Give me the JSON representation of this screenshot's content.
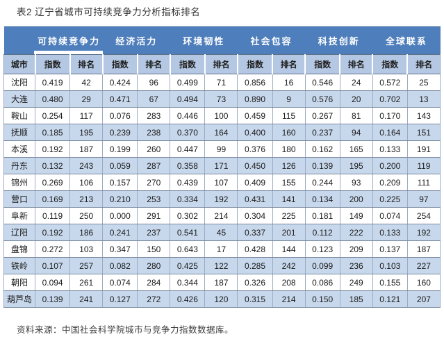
{
  "title": "表2 辽宁省城市可持续竞争力分析指标排名",
  "footer": "资料来源：中国社会科学院城市与竞争力指数数据库。",
  "colors": {
    "header_bg": "#4e7ebb",
    "header_text": "#ffffff",
    "subheader_bg": "#b5c8e3",
    "row_alt_bg": "#c8d8ec",
    "border": "#8e9fb8"
  },
  "table": {
    "city_header": "城市",
    "groups": [
      "可持续竞争力",
      "经济活力",
      "环境韧性",
      "社会包容",
      "科技创新",
      "全球联系"
    ],
    "sub_headers": {
      "index": "指数",
      "rank": "排名"
    },
    "rows": [
      {
        "city": "沈阳",
        "values": [
          "0.419",
          "42",
          "0.424",
          "96",
          "0.499",
          "71",
          "0.856",
          "16",
          "0.546",
          "24",
          "0.572",
          "25"
        ]
      },
      {
        "city": "大连",
        "values": [
          "0.480",
          "29",
          "0.471",
          "67",
          "0.494",
          "73",
          "0.890",
          "9",
          "0.576",
          "20",
          "0.702",
          "13"
        ]
      },
      {
        "city": "鞍山",
        "values": [
          "0.254",
          "117",
          "0.076",
          "283",
          "0.446",
          "100",
          "0.459",
          "115",
          "0.267",
          "81",
          "0.170",
          "143"
        ]
      },
      {
        "city": "抚顺",
        "values": [
          "0.185",
          "195",
          "0.239",
          "238",
          "0.370",
          "164",
          "0.400",
          "160",
          "0.237",
          "94",
          "0.164",
          "151"
        ]
      },
      {
        "city": "本溪",
        "values": [
          "0.192",
          "187",
          "0.199",
          "260",
          "0.447",
          "99",
          "0.376",
          "180",
          "0.162",
          "165",
          "0.133",
          "191"
        ]
      },
      {
        "city": "丹东",
        "values": [
          "0.132",
          "243",
          "0.059",
          "287",
          "0.358",
          "171",
          "0.450",
          "126",
          "0.139",
          "195",
          "0.200",
          "119"
        ]
      },
      {
        "city": "锦州",
        "values": [
          "0.269",
          "106",
          "0.157",
          "270",
          "0.439",
          "107",
          "0.409",
          "155",
          "0.244",
          "93",
          "0.209",
          "111"
        ]
      },
      {
        "city": "营口",
        "values": [
          "0.169",
          "213",
          "0.210",
          "253",
          "0.334",
          "192",
          "0.431",
          "141",
          "0.134",
          "200",
          "0.225",
          "97"
        ]
      },
      {
        "city": "阜新",
        "values": [
          "0.119",
          "250",
          "0.000",
          "291",
          "0.302",
          "214",
          "0.304",
          "225",
          "0.181",
          "149",
          "0.074",
          "254"
        ]
      },
      {
        "city": "辽阳",
        "values": [
          "0.192",
          "186",
          "0.241",
          "237",
          "0.541",
          "45",
          "0.337",
          "201",
          "0.112",
          "222",
          "0.133",
          "192"
        ]
      },
      {
        "city": "盘锦",
        "values": [
          "0.272",
          "103",
          "0.347",
          "150",
          "0.643",
          "17",
          "0.428",
          "144",
          "0.123",
          "209",
          "0.137",
          "187"
        ]
      },
      {
        "city": "铁岭",
        "values": [
          "0.107",
          "257",
          "0.082",
          "280",
          "0.425",
          "122",
          "0.285",
          "242",
          "0.099",
          "236",
          "0.103",
          "227"
        ]
      },
      {
        "city": "朝阳",
        "values": [
          "0.094",
          "261",
          "0.074",
          "284",
          "0.344",
          "187",
          "0.326",
          "208",
          "0.086",
          "249",
          "0.155",
          "160"
        ]
      },
      {
        "city": "葫芦岛",
        "values": [
          "0.139",
          "241",
          "0.127",
          "272",
          "0.426",
          "120",
          "0.315",
          "214",
          "0.150",
          "185",
          "0.121",
          "207"
        ]
      }
    ]
  }
}
